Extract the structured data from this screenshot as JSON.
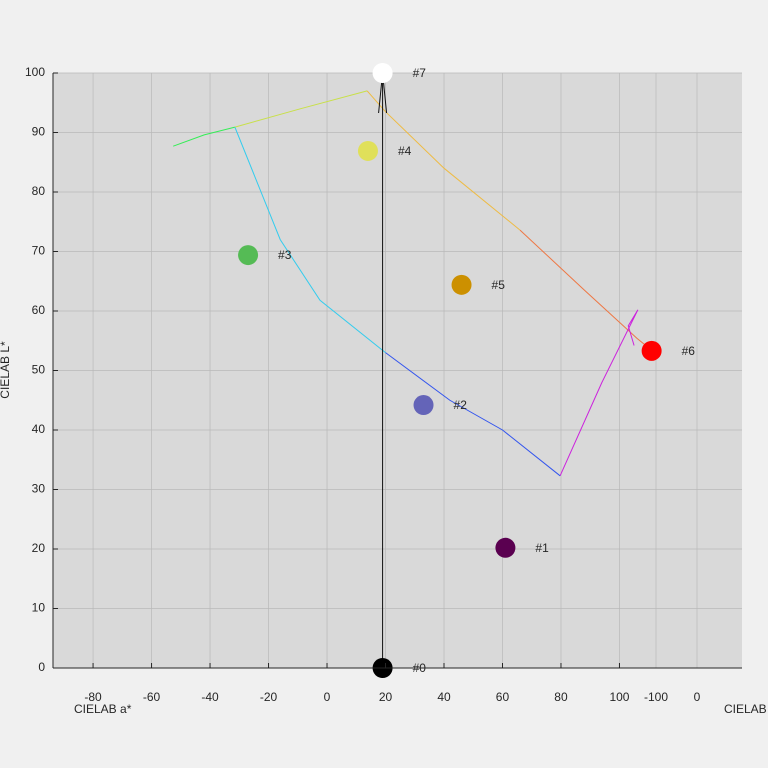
{
  "chart_data": {
    "type": "scatter",
    "x_label": "CIELAB a*",
    "y_label": "CIELAB L*",
    "z_label": "CIELAB",
    "labels": [
      "#0",
      "#1",
      "#2",
      "#3",
      "#4",
      "#5",
      "#6",
      "#7"
    ],
    "x": [
      19,
      61,
      33,
      -27,
      14,
      46,
      111,
      19
    ],
    "values": [
      0,
      20.2,
      44.2,
      69.4,
      86.9,
      64.4,
      53.3,
      100
    ],
    "colors": [
      "#000000",
      "#5a0050",
      "#6464b8",
      "#55bb55",
      "#e0e05a",
      "#cc9000",
      "#ff0000",
      "#ffffff"
    ],
    "boundary": [
      {
        "color": "#33ee55",
        "x": [
          -52.6,
          -42,
          -31.5
        ],
        "values": [
          87.7,
          89.6,
          90.9
        ]
      },
      {
        "color": "#c8e048",
        "x": [
          -31.5,
          -9,
          13.7
        ],
        "values": [
          90.9,
          94,
          97.0
        ]
      },
      {
        "color": "#eebb44",
        "x": [
          13.7,
          20,
          40,
          66
        ],
        "values": [
          97.0,
          93.5,
          84,
          73.6
        ]
      },
      {
        "color": "#ee7744",
        "x": [
          66,
          88,
          106,
          109,
          111
        ],
        "values": [
          73.6,
          63.5,
          55.4,
          54.2,
          53.3
        ]
      },
      {
        "color": "#cc22dd",
        "x": [
          105,
          103,
          106.3,
          94,
          79.7
        ],
        "values": [
          54.2,
          57.5,
          60.2,
          48,
          32.3
        ]
      },
      {
        "color": "#3355ee",
        "x": [
          79.7,
          60,
          42,
          20
        ],
        "values": [
          32.3,
          40,
          45,
          53
        ]
      },
      {
        "color": "#33ccee",
        "x": [
          20,
          -2.4,
          -16,
          -31.5
        ],
        "values": [
          53,
          61.8,
          72,
          90.9
        ]
      }
    ],
    "xlim": [
      -93.7,
      141.9
    ],
    "ylim": [
      0,
      100
    ],
    "xticks": [
      -80,
      -60,
      -40,
      -20,
      0,
      20,
      40,
      60,
      80,
      100
    ],
    "yticks": [
      0,
      10,
      20,
      30,
      40,
      50,
      60,
      70,
      80,
      90,
      100
    ],
    "bticks": [
      -100,
      0
    ],
    "grid": true
  }
}
